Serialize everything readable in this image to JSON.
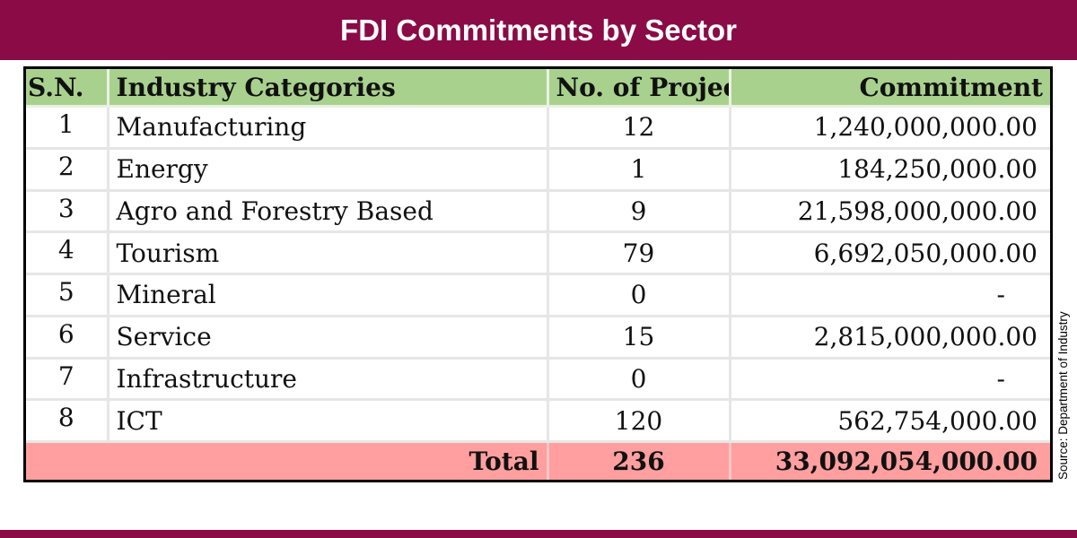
{
  "title": "FDI Commitments by Sector",
  "source": "Source: Department of Industry",
  "colors": {
    "brand": "#8a0b46",
    "header_bg": "#a9d18e",
    "total_bg": "#ff9f9f"
  },
  "table": {
    "headers": [
      "S.N.",
      "Industry Categories",
      "No. of Project",
      "Commitment"
    ],
    "rows": [
      [
        "1",
        "Manufacturing",
        "12",
        "1,240,000,000.00"
      ],
      [
        "2",
        "Energy",
        "1",
        "184,250,000.00"
      ],
      [
        "3",
        "Agro and Forestry Based",
        "9",
        "21,598,000,000.00"
      ],
      [
        "4",
        "Tourism",
        "79",
        "6,692,050,000.00"
      ],
      [
        "5",
        "Mineral",
        "0",
        "-"
      ],
      [
        "6",
        "Service",
        "15",
        "2,815,000,000.00"
      ],
      [
        "7",
        "Infrastructure",
        "0",
        "-"
      ],
      [
        "8",
        "ICT",
        "120",
        "562,754,000.00"
      ]
    ],
    "total": {
      "label": "Total",
      "projects": "236",
      "commitment": "33,092,054,000.00"
    }
  }
}
